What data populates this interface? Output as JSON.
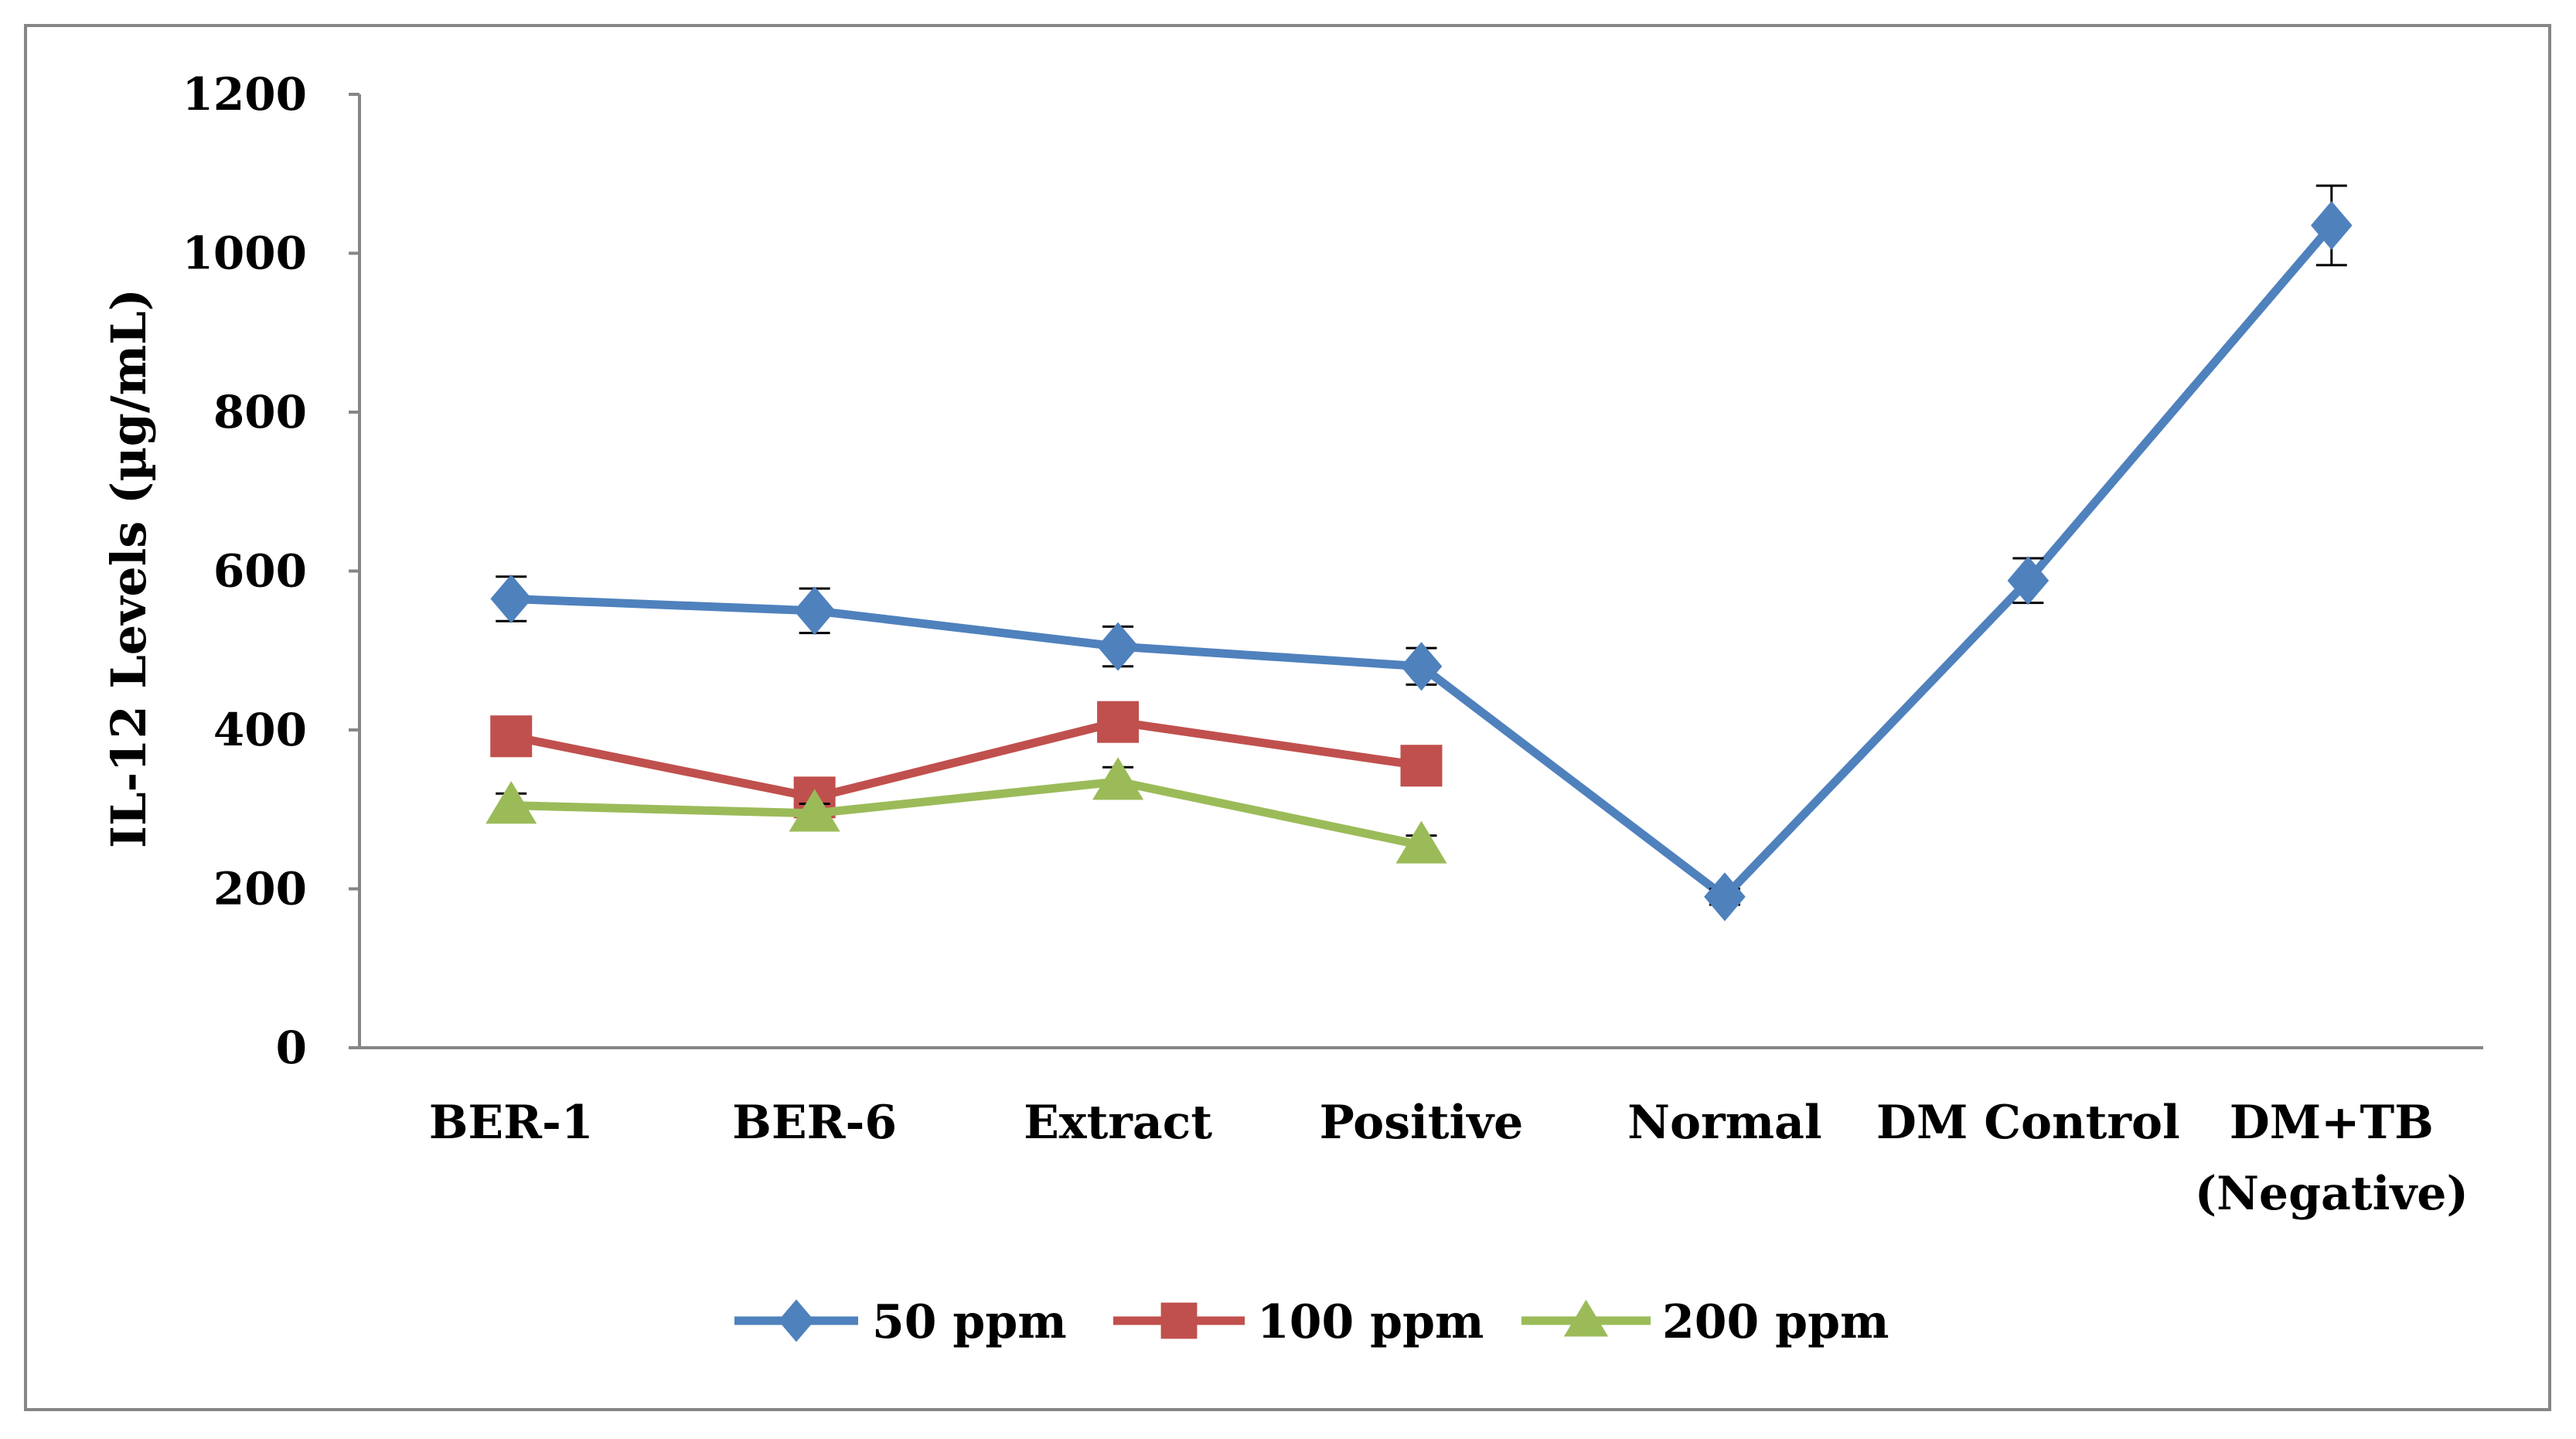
{
  "chart_data": {
    "type": "line",
    "title": "",
    "xlabel": "",
    "ylabel": "IL-12 Levels (µg/mL)",
    "ylim": [
      0,
      1200
    ],
    "yticks": [
      "0",
      "200",
      "400",
      "600",
      "800",
      "1000",
      "1200"
    ],
    "categories": [
      [
        "BER-1"
      ],
      [
        "BER-6"
      ],
      [
        "Extract"
      ],
      [
        "Positive"
      ],
      [
        "Normal"
      ],
      [
        "DM Control"
      ],
      [
        "DM+TB",
        "(Negative)"
      ]
    ],
    "series": [
      {
        "name": "50 ppm",
        "color": "#4F81BD",
        "marker": "diamond",
        "values": [
          565,
          550,
          505,
          480,
          190,
          588,
          1035
        ],
        "errors": [
          28,
          28,
          25,
          23,
          10,
          28,
          50
        ]
      },
      {
        "name": "100 ppm",
        "color": "#C0504D",
        "marker": "square",
        "values": [
          392,
          315,
          410,
          355,
          null,
          null,
          null
        ],
        "errors": [
          18,
          15,
          20,
          15,
          null,
          null,
          null
        ]
      },
      {
        "name": "200 ppm",
        "color": "#9BBB59",
        "marker": "triangle",
        "values": [
          305,
          295,
          335,
          255,
          null,
          null,
          null
        ],
        "errors": [
          15,
          12,
          18,
          12,
          null,
          null,
          null
        ]
      }
    ],
    "legend_position": "bottom",
    "grid": false
  }
}
